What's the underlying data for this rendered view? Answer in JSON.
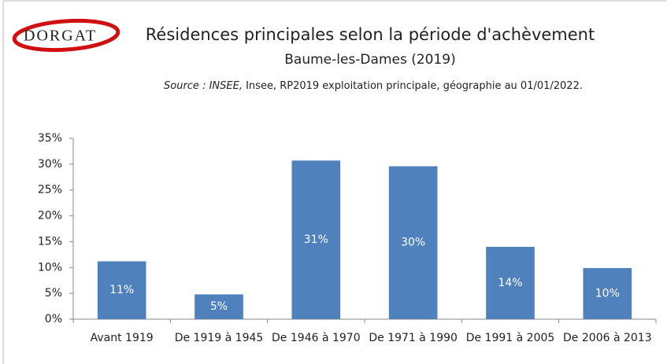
{
  "logo": {
    "text": "DORGAT"
  },
  "chart_data": {
    "type": "bar",
    "title": "Résidences principales selon la période d'achèvement",
    "subtitle": "Baume-les-Dames (2019)",
    "source_prefix": "Source : INSEE,",
    "source": "Insee, RP2019 exploitation principale, géographie au 01/01/2022.",
    "categories": [
      "Avant 1919",
      "De 1919 à 1945",
      "De 1946 à 1970",
      "De 1971 à 1990",
      "De 1991 à 2005",
      "De 2006 à 2013"
    ],
    "values": [
      11.2,
      4.8,
      30.7,
      29.6,
      14.0,
      9.9
    ],
    "value_labels": [
      "11%",
      "5%",
      "31%",
      "30%",
      "14%",
      "10%"
    ],
    "color": "#4f81bd",
    "ylim": [
      0,
      35
    ],
    "yticks": [
      {
        "value": 0,
        "label": "0%"
      },
      {
        "value": 5,
        "label": "5%"
      },
      {
        "value": 10,
        "label": "10%"
      },
      {
        "value": 15,
        "label": "15%"
      },
      {
        "value": 20,
        "label": "20%"
      },
      {
        "value": 25,
        "label": "25%"
      },
      {
        "value": 30,
        "label": "30%"
      },
      {
        "value": 35,
        "label": "35%"
      }
    ],
    "grid": false
  }
}
